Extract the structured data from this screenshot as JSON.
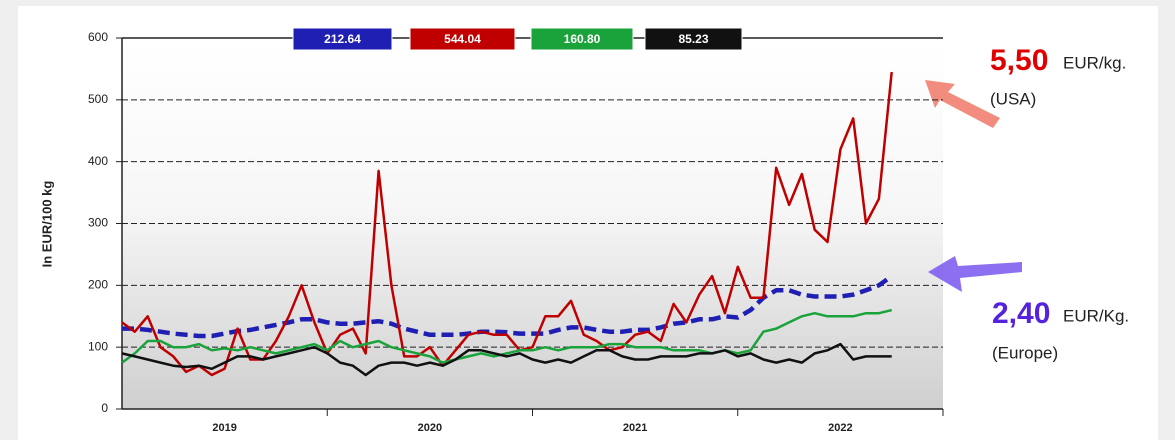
{
  "chart_data": {
    "type": "line",
    "ylabel": "In EUR/100 kg",
    "x": [
      2019,
      2019.0625,
      2019.125,
      2019.1875,
      2019.25,
      2019.3125,
      2019.375,
      2019.4375,
      2019.5,
      2019.5625,
      2019.625,
      2019.6875,
      2019.75,
      2019.8125,
      2019.875,
      2019.9375,
      2020,
      2020.0625,
      2020.125,
      2020.1875,
      2020.25,
      2020.3125,
      2020.375,
      2020.4375,
      2020.5,
      2020.5625,
      2020.625,
      2020.6875,
      2020.75,
      2020.8125,
      2020.875,
      2020.9375,
      2021,
      2021.0625,
      2021.125,
      2021.1875,
      2021.25,
      2021.3125,
      2021.375,
      2021.4375,
      2021.5,
      2021.5625,
      2021.625,
      2021.6875,
      2021.75,
      2021.8125,
      2021.875,
      2021.9375,
      2022,
      2022.0625,
      2022.125,
      2022.1875,
      2022.25,
      2022.3125,
      2022.375,
      2022.4375,
      2022.5,
      2022.5625,
      2022.625,
      2022.6875,
      2022.75
    ],
    "series": [
      {
        "name": "212.64",
        "color": "#1f1fb4",
        "dashed": true,
        "values": [
          130,
          130,
          128,
          125,
          122,
          120,
          118,
          118,
          122,
          126,
          128,
          132,
          136,
          140,
          145,
          145,
          140,
          138,
          138,
          140,
          142,
          138,
          130,
          125,
          120,
          120,
          120,
          122,
          125,
          125,
          124,
          122,
          122,
          122,
          128,
          132,
          132,
          128,
          125,
          125,
          128,
          128,
          132,
          138,
          140,
          145,
          145,
          150,
          148,
          160,
          180,
          192,
          192,
          185,
          182,
          182,
          182,
          185,
          192,
          200,
          215
        ]
      },
      {
        "name": "544.04",
        "color": "#c00000",
        "values": [
          140,
          125,
          150,
          100,
          85,
          60,
          70,
          55,
          65,
          130,
          80,
          80,
          110,
          150,
          200,
          140,
          90,
          120,
          130,
          90,
          385,
          200,
          85,
          85,
          100,
          70,
          95,
          120,
          125,
          120,
          120,
          95,
          100,
          150,
          150,
          175,
          120,
          110,
          95,
          100,
          120,
          125,
          110,
          170,
          140,
          185,
          215,
          155,
          230,
          180,
          180,
          390,
          330,
          380,
          290,
          270,
          420,
          470,
          300,
          340,
          545
        ]
      },
      {
        "name": "160.80",
        "color": "#1aa33a",
        "values": [
          75,
          90,
          110,
          110,
          100,
          100,
          105,
          95,
          98,
          95,
          100,
          95,
          90,
          95,
          100,
          105,
          95,
          110,
          100,
          105,
          110,
          100,
          95,
          90,
          85,
          75,
          80,
          85,
          90,
          85,
          90,
          95,
          95,
          100,
          95,
          100,
          100,
          100,
          105,
          105,
          100,
          100,
          100,
          95,
          95,
          95,
          90,
          95,
          90,
          95,
          125,
          130,
          140,
          150,
          155,
          150,
          150,
          150,
          155,
          155,
          160
        ]
      },
      {
        "name": "85.23",
        "color": "#111111",
        "values": [
          90,
          85,
          80,
          75,
          70,
          68,
          70,
          65,
          75,
          85,
          85,
          80,
          85,
          90,
          95,
          100,
          90,
          75,
          70,
          55,
          70,
          75,
          75,
          70,
          75,
          70,
          80,
          95,
          95,
          90,
          85,
          90,
          80,
          75,
          80,
          75,
          85,
          95,
          95,
          85,
          80,
          80,
          85,
          85,
          85,
          90,
          90,
          95,
          85,
          90,
          80,
          75,
          80,
          75,
          90,
          95,
          105,
          80,
          85,
          85,
          85
        ]
      }
    ],
    "xlim": [
      2019,
      2023
    ],
    "xticks": [
      {
        "value": 2019.5,
        "label": "2019"
      },
      {
        "value": 2020.5,
        "label": "2020"
      },
      {
        "value": 2021.5,
        "label": "2021"
      },
      {
        "value": 2022.5,
        "label": "2022"
      }
    ],
    "xtick_marks": [
      2020,
      2021,
      2022,
      2023
    ],
    "ylim": [
      0,
      600
    ],
    "yticks": [
      0,
      100,
      200,
      300,
      400,
      500,
      600
    ],
    "grid": true,
    "annotations": [
      {
        "value": "5,50",
        "unit": "EUR/kg.",
        "region": "(USA)",
        "color": "#e00000"
      },
      {
        "value": "2,40",
        "unit": "EUR/Kg.",
        "region": "(Europe)",
        "color": "#5522dd"
      }
    ]
  }
}
